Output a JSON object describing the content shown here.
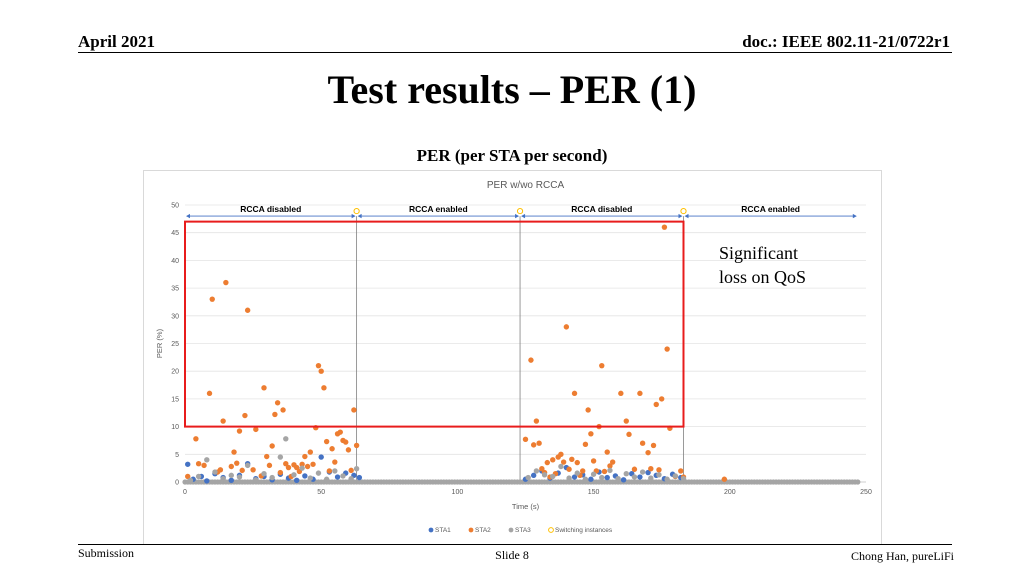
{
  "header": {
    "date": "April 2021",
    "doc": "doc.: IEEE 802.11-21/0722r1"
  },
  "slide": {
    "title": "Test results – PER (1)",
    "subtitle": "PER (per STA per second)",
    "annotation_line1": "Significant",
    "annotation_line2": "loss on QoS"
  },
  "footer": {
    "left": "Submission",
    "center": "Slide 8",
    "right": "Chong Han, pureLiFi"
  },
  "colors": {
    "sta1": "#4472c4",
    "sta2": "#ed7d31",
    "sta3": "#a5a5a5",
    "switch": "#ffc000",
    "highlight": "#e81c1c"
  },
  "chart_data": {
    "type": "scatter",
    "title": "PER w/wo RCCA",
    "xlabel": "Time (s)",
    "ylabel": "PER (%)",
    "xlim": [
      0,
      250
    ],
    "ylim": [
      0,
      50
    ],
    "xticks": [
      0,
      50,
      100,
      150,
      200,
      250
    ],
    "yticks": [
      0,
      5,
      10,
      15,
      20,
      25,
      30,
      35,
      40,
      45,
      50
    ],
    "gridlines": true,
    "legend_position": "bottom",
    "segments": [
      {
        "label": "RCCA disabled",
        "start": 0,
        "end": 63
      },
      {
        "label": "RCCA enabled",
        "start": 63,
        "end": 123
      },
      {
        "label": "RCCA disabled",
        "start": 123,
        "end": 183
      },
      {
        "label": "RCCA enabled",
        "start": 183,
        "end": 247
      }
    ],
    "switching_instances": [
      63,
      123,
      183
    ],
    "highlight_box": {
      "x": [
        0,
        183
      ],
      "y": [
        10,
        47
      ]
    },
    "series": [
      {
        "name": "STA1",
        "color": "#4472c4",
        "points": [
          [
            1,
            3.2
          ],
          [
            3,
            0.5
          ],
          [
            6,
            1.0
          ],
          [
            8,
            0.2
          ],
          [
            11,
            1.5
          ],
          [
            14,
            0.8
          ],
          [
            17,
            0.3
          ],
          [
            20,
            1.2
          ],
          [
            23,
            3.3
          ],
          [
            26,
            0.6
          ],
          [
            29,
            1.0
          ],
          [
            32,
            0.4
          ],
          [
            35,
            1.4
          ],
          [
            38,
            0.7
          ],
          [
            41,
            0.3
          ],
          [
            44,
            1.1
          ],
          [
            47,
            0.5
          ],
          [
            50,
            4.5
          ],
          [
            53,
            1.8
          ],
          [
            56,
            0.9
          ],
          [
            59,
            1.6
          ],
          [
            62,
            1.2
          ],
          [
            64,
            0.8
          ],
          [
            125,
            0.5
          ],
          [
            128,
            1.2
          ],
          [
            131,
            2.0
          ],
          [
            134,
            0.7
          ],
          [
            137,
            1.6
          ],
          [
            140,
            2.6
          ],
          [
            143,
            0.9
          ],
          [
            146,
            1.3
          ],
          [
            149,
            0.5
          ],
          [
            152,
            1.8
          ],
          [
            155,
            0.8
          ],
          [
            158,
            1.1
          ],
          [
            161,
            0.4
          ],
          [
            164,
            1.5
          ],
          [
            167,
            0.9
          ],
          [
            170,
            1.7
          ],
          [
            173,
            1.2
          ],
          [
            176,
            0.6
          ],
          [
            179,
            1.4
          ],
          [
            182,
            0.8
          ]
        ]
      },
      {
        "name": "STA2",
        "color": "#ed7d31",
        "points": [
          [
            1,
            1.0
          ],
          [
            4,
            7.8
          ],
          [
            5,
            3.3
          ],
          [
            7,
            3.0
          ],
          [
            9,
            16
          ],
          [
            10,
            33
          ],
          [
            12,
            1.8
          ],
          [
            13,
            2.2
          ],
          [
            14,
            11
          ],
          [
            15,
            36
          ],
          [
            17,
            2.8
          ],
          [
            18,
            5.4
          ],
          [
            19,
            3.4
          ],
          [
            20,
            9.2
          ],
          [
            21,
            2.1
          ],
          [
            22,
            12
          ],
          [
            23,
            31
          ],
          [
            25,
            2.2
          ],
          [
            26,
            9.5
          ],
          [
            28,
            1.1
          ],
          [
            29,
            17
          ],
          [
            30,
            4.6
          ],
          [
            31,
            3.0
          ],
          [
            32,
            6.5
          ],
          [
            33,
            12.2
          ],
          [
            34,
            14.3
          ],
          [
            35,
            1.7
          ],
          [
            36,
            13
          ],
          [
            37,
            3.3
          ],
          [
            38,
            2.6
          ],
          [
            39,
            1.0
          ],
          [
            40,
            3.1
          ],
          [
            41,
            2.6
          ],
          [
            42,
            1.9
          ],
          [
            43,
            3.2
          ],
          [
            44,
            4.6
          ],
          [
            45,
            2.8
          ],
          [
            46,
            5.4
          ],
          [
            47,
            3.2
          ],
          [
            48,
            9.8
          ],
          [
            49,
            21
          ],
          [
            50,
            20
          ],
          [
            51,
            17
          ],
          [
            52,
            7.3
          ],
          [
            53,
            2.0
          ],
          [
            54,
            6.0
          ],
          [
            55,
            3.6
          ],
          [
            56,
            8.7
          ],
          [
            57,
            9.0
          ],
          [
            58,
            7.5
          ],
          [
            59,
            7.2
          ],
          [
            60,
            5.8
          ],
          [
            61,
            2.1
          ],
          [
            62,
            13
          ],
          [
            63,
            6.6
          ],
          [
            125,
            7.7
          ],
          [
            127,
            22
          ],
          [
            128,
            6.7
          ],
          [
            129,
            11
          ],
          [
            130,
            7.0
          ],
          [
            131,
            2.4
          ],
          [
            132,
            1.7
          ],
          [
            133,
            3.5
          ],
          [
            134,
            0.9
          ],
          [
            135,
            4.0
          ],
          [
            136,
            1.5
          ],
          [
            137,
            4.5
          ],
          [
            138,
            5.0
          ],
          [
            139,
            3.6
          ],
          [
            140,
            28
          ],
          [
            141,
            2.3
          ],
          [
            142,
            4.1
          ],
          [
            143,
            16
          ],
          [
            144,
            3.5
          ],
          [
            145,
            1.2
          ],
          [
            146,
            2.0
          ],
          [
            147,
            6.8
          ],
          [
            148,
            13
          ],
          [
            149,
            8.7
          ],
          [
            150,
            3.8
          ],
          [
            151,
            2.0
          ],
          [
            152,
            10
          ],
          [
            153,
            21
          ],
          [
            154,
            1.9
          ],
          [
            155,
            5.4
          ],
          [
            156,
            2.9
          ],
          [
            157,
            3.6
          ],
          [
            160,
            16
          ],
          [
            162,
            11
          ],
          [
            163,
            8.6
          ],
          [
            165,
            2.3
          ],
          [
            167,
            16
          ],
          [
            168,
            7.0
          ],
          [
            170,
            5.3
          ],
          [
            171,
            2.4
          ],
          [
            172,
            6.6
          ],
          [
            173,
            14
          ],
          [
            174,
            2.2
          ],
          [
            175,
            15
          ],
          [
            176,
            46
          ],
          [
            177,
            24
          ],
          [
            178,
            9.7
          ],
          [
            180,
            1.0
          ],
          [
            182,
            2.0
          ],
          [
            183,
            0.9
          ],
          [
            198,
            0.5
          ]
        ]
      },
      {
        "name": "STA3",
        "color": "#a5a5a5",
        "points": [
          [
            2,
            0.3
          ],
          [
            5,
            1.0
          ],
          [
            8,
            4.0
          ],
          [
            11,
            1.8
          ],
          [
            14,
            0.6
          ],
          [
            17,
            1.2
          ],
          [
            20,
            0.9
          ],
          [
            23,
            3.0
          ],
          [
            26,
            0.4
          ],
          [
            29,
            1.5
          ],
          [
            32,
            0.8
          ],
          [
            35,
            4.5
          ],
          [
            37,
            7.8
          ],
          [
            40,
            1.3
          ],
          [
            43,
            2.5
          ],
          [
            46,
            0.7
          ],
          [
            49,
            1.6
          ],
          [
            52,
            0.5
          ],
          [
            55,
            2.0
          ],
          [
            58,
            1.1
          ],
          [
            61,
            0.6
          ],
          [
            63,
            2.4
          ],
          [
            126,
            0.8
          ],
          [
            129,
            2.0
          ],
          [
            132,
            1.3
          ],
          [
            135,
            1.0
          ],
          [
            138,
            2.8
          ],
          [
            141,
            0.7
          ],
          [
            144,
            1.6
          ],
          [
            147,
            0.5
          ],
          [
            150,
            1.4
          ],
          [
            153,
            0.8
          ],
          [
            156,
            2.1
          ],
          [
            159,
            0.6
          ],
          [
            162,
            1.5
          ],
          [
            165,
            0.9
          ],
          [
            168,
            1.8
          ],
          [
            171,
            0.7
          ],
          [
            174,
            1.3
          ],
          [
            177,
            0.5
          ],
          [
            180,
            1.1
          ],
          [
            183,
            0.6
          ]
        ]
      }
    ]
  },
  "legend": [
    {
      "name": "STA1"
    },
    {
      "name": "STA2"
    },
    {
      "name": "STA3"
    },
    {
      "name": "Switching instances"
    }
  ]
}
